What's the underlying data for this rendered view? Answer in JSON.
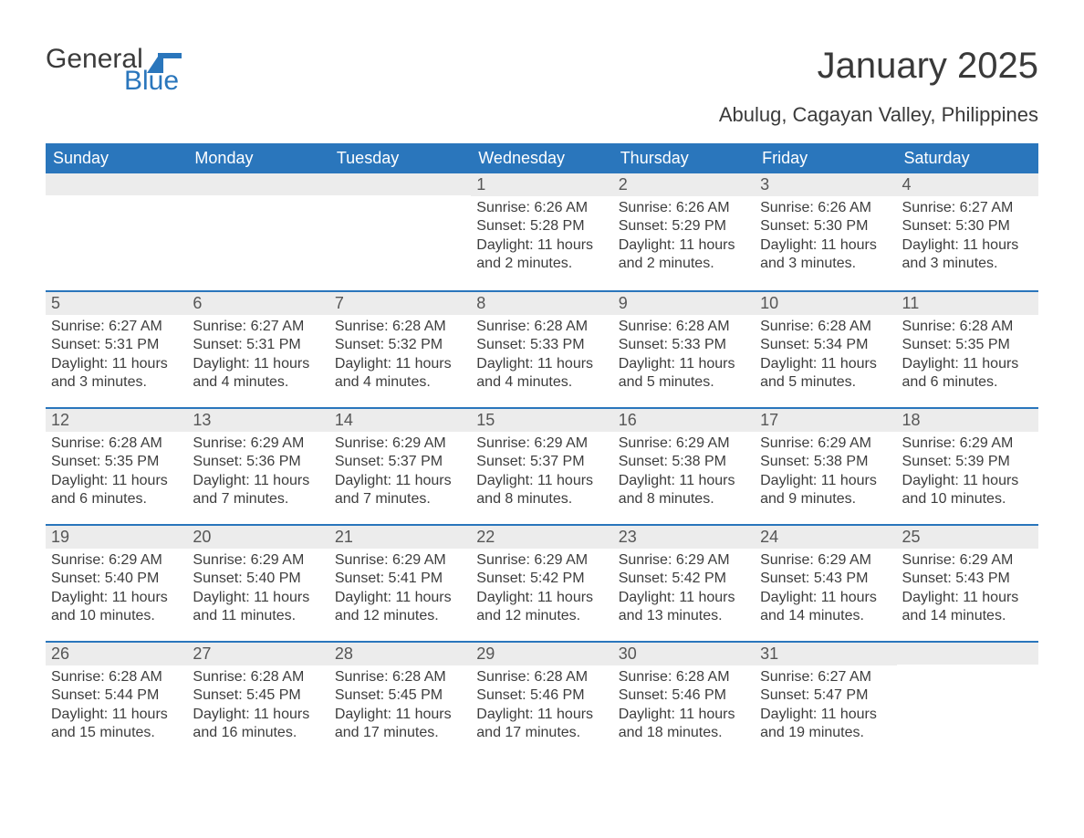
{
  "logo": {
    "text_general": "General",
    "text_blue": "Blue",
    "flag_color": "#2a76bc"
  },
  "title": "January 2025",
  "subtitle": "Abulug, Cagayan Valley, Philippines",
  "colors": {
    "header_blue": "#2a76bc",
    "header_text": "#ffffff",
    "daynum_bg": "#ececec",
    "text": "#3d3d3d",
    "border": "#2a76bc",
    "background": "#ffffff"
  },
  "day_names": [
    "Sunday",
    "Monday",
    "Tuesday",
    "Wednesday",
    "Thursday",
    "Friday",
    "Saturday"
  ],
  "weeks": [
    [
      null,
      null,
      null,
      {
        "n": "1",
        "sr": "6:26 AM",
        "ss": "5:28 PM",
        "dl": "11 hours and 2 minutes."
      },
      {
        "n": "2",
        "sr": "6:26 AM",
        "ss": "5:29 PM",
        "dl": "11 hours and 2 minutes."
      },
      {
        "n": "3",
        "sr": "6:26 AM",
        "ss": "5:30 PM",
        "dl": "11 hours and 3 minutes."
      },
      {
        "n": "4",
        "sr": "6:27 AM",
        "ss": "5:30 PM",
        "dl": "11 hours and 3 minutes."
      }
    ],
    [
      {
        "n": "5",
        "sr": "6:27 AM",
        "ss": "5:31 PM",
        "dl": "11 hours and 3 minutes."
      },
      {
        "n": "6",
        "sr": "6:27 AM",
        "ss": "5:31 PM",
        "dl": "11 hours and 4 minutes."
      },
      {
        "n": "7",
        "sr": "6:28 AM",
        "ss": "5:32 PM",
        "dl": "11 hours and 4 minutes."
      },
      {
        "n": "8",
        "sr": "6:28 AM",
        "ss": "5:33 PM",
        "dl": "11 hours and 4 minutes."
      },
      {
        "n": "9",
        "sr": "6:28 AM",
        "ss": "5:33 PM",
        "dl": "11 hours and 5 minutes."
      },
      {
        "n": "10",
        "sr": "6:28 AM",
        "ss": "5:34 PM",
        "dl": "11 hours and 5 minutes."
      },
      {
        "n": "11",
        "sr": "6:28 AM",
        "ss": "5:35 PM",
        "dl": "11 hours and 6 minutes."
      }
    ],
    [
      {
        "n": "12",
        "sr": "6:28 AM",
        "ss": "5:35 PM",
        "dl": "11 hours and 6 minutes."
      },
      {
        "n": "13",
        "sr": "6:29 AM",
        "ss": "5:36 PM",
        "dl": "11 hours and 7 minutes."
      },
      {
        "n": "14",
        "sr": "6:29 AM",
        "ss": "5:37 PM",
        "dl": "11 hours and 7 minutes."
      },
      {
        "n": "15",
        "sr": "6:29 AM",
        "ss": "5:37 PM",
        "dl": "11 hours and 8 minutes."
      },
      {
        "n": "16",
        "sr": "6:29 AM",
        "ss": "5:38 PM",
        "dl": "11 hours and 8 minutes."
      },
      {
        "n": "17",
        "sr": "6:29 AM",
        "ss": "5:38 PM",
        "dl": "11 hours and 9 minutes."
      },
      {
        "n": "18",
        "sr": "6:29 AM",
        "ss": "5:39 PM",
        "dl": "11 hours and 10 minutes."
      }
    ],
    [
      {
        "n": "19",
        "sr": "6:29 AM",
        "ss": "5:40 PM",
        "dl": "11 hours and 10 minutes."
      },
      {
        "n": "20",
        "sr": "6:29 AM",
        "ss": "5:40 PM",
        "dl": "11 hours and 11 minutes."
      },
      {
        "n": "21",
        "sr": "6:29 AM",
        "ss": "5:41 PM",
        "dl": "11 hours and 12 minutes."
      },
      {
        "n": "22",
        "sr": "6:29 AM",
        "ss": "5:42 PM",
        "dl": "11 hours and 12 minutes."
      },
      {
        "n": "23",
        "sr": "6:29 AM",
        "ss": "5:42 PM",
        "dl": "11 hours and 13 minutes."
      },
      {
        "n": "24",
        "sr": "6:29 AM",
        "ss": "5:43 PM",
        "dl": "11 hours and 14 minutes."
      },
      {
        "n": "25",
        "sr": "6:29 AM",
        "ss": "5:43 PM",
        "dl": "11 hours and 14 minutes."
      }
    ],
    [
      {
        "n": "26",
        "sr": "6:28 AM",
        "ss": "5:44 PM",
        "dl": "11 hours and 15 minutes."
      },
      {
        "n": "27",
        "sr": "6:28 AM",
        "ss": "5:45 PM",
        "dl": "11 hours and 16 minutes."
      },
      {
        "n": "28",
        "sr": "6:28 AM",
        "ss": "5:45 PM",
        "dl": "11 hours and 17 minutes."
      },
      {
        "n": "29",
        "sr": "6:28 AM",
        "ss": "5:46 PM",
        "dl": "11 hours and 17 minutes."
      },
      {
        "n": "30",
        "sr": "6:28 AM",
        "ss": "5:46 PM",
        "dl": "11 hours and 18 minutes."
      },
      {
        "n": "31",
        "sr": "6:27 AM",
        "ss": "5:47 PM",
        "dl": "11 hours and 19 minutes."
      },
      null
    ]
  ],
  "labels": {
    "sunrise": "Sunrise: ",
    "sunset": "Sunset: ",
    "daylight": "Daylight: "
  }
}
